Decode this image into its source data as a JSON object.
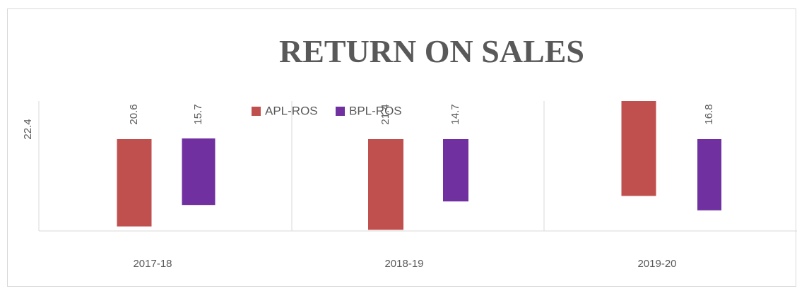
{
  "chart_data": {
    "type": "bar",
    "title": "RETURN ON SALES",
    "categories": [
      "2017-18",
      "2018-19",
      "2019-20"
    ],
    "series": [
      {
        "name": "APL-ROS",
        "color": "#c0504d",
        "values": [
          20.6,
          21.4,
          22.4
        ]
      },
      {
        "name": "BPL-ROS",
        "color": "#7030a0",
        "values": [
          15.7,
          14.7,
          16.8
        ]
      }
    ],
    "legend": "top"
  }
}
